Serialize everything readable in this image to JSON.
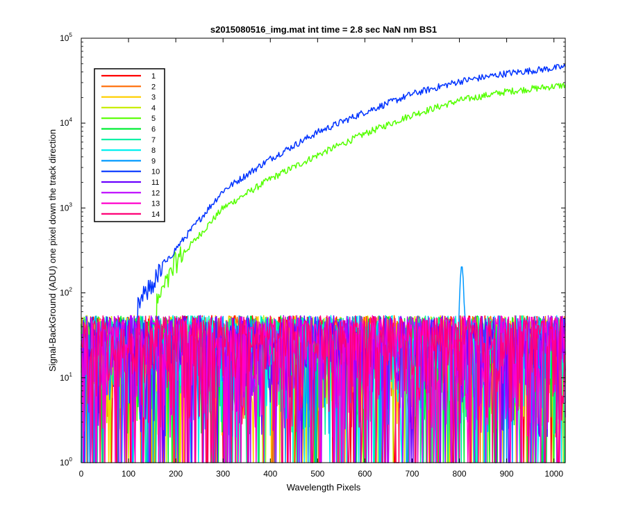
{
  "chart_data": {
    "type": "line",
    "title": "s2015080516_img.mat int time = 2.8 sec  NaN nm BS1",
    "xlabel": "Wavelength Pixels",
    "ylabel": "Signal-BackGround (ADU) one pixel down the track direction",
    "xlim": [
      0,
      1024
    ],
    "ylim": [
      1,
      100000
    ],
    "yscale": "log",
    "xticks": [
      "0",
      "100",
      "200",
      "300",
      "400",
      "500",
      "600",
      "700",
      "800",
      "900",
      "1000"
    ],
    "yticks": [
      {
        "base": "10",
        "exp": "0"
      },
      {
        "base": "10",
        "exp": "1"
      },
      {
        "base": "10",
        "exp": "2"
      },
      {
        "base": "10",
        "exp": "3"
      },
      {
        "base": "10",
        "exp": "4"
      },
      {
        "base": "10",
        "exp": "5"
      }
    ],
    "grid": false,
    "legend_position": "top-left",
    "series": [
      {
        "name": "1",
        "color": "#ff0000",
        "kind": "noise"
      },
      {
        "name": "2",
        "color": "#ff6a00",
        "kind": "noise"
      },
      {
        "name": "3",
        "color": "#ffd000",
        "kind": "noise"
      },
      {
        "name": "4",
        "color": "#c8ee00",
        "kind": "noise"
      },
      {
        "name": "5",
        "color": "#55ff00",
        "kind": "signal",
        "curve": [
          [
            160,
            75
          ],
          [
            200,
            230
          ],
          [
            300,
            1000
          ],
          [
            400,
            2200
          ],
          [
            500,
            4200
          ],
          [
            600,
            7500
          ],
          [
            700,
            12500
          ],
          [
            800,
            18500
          ],
          [
            900,
            23500
          ],
          [
            1024,
            28000
          ]
        ]
      },
      {
        "name": "6",
        "color": "#00ee33",
        "kind": "noise"
      },
      {
        "name": "7",
        "color": "#00f0a0",
        "kind": "noise"
      },
      {
        "name": "8",
        "color": "#00f0f0",
        "kind": "noise"
      },
      {
        "name": "9",
        "color": "#0099ff",
        "kind": "noise",
        "peak": {
          "x": 805,
          "value": 210
        }
      },
      {
        "name": "10",
        "color": "#0033ff",
        "kind": "signal",
        "curve": [
          [
            120,
            70
          ],
          [
            200,
            330
          ],
          [
            300,
            1600
          ],
          [
            400,
            3800
          ],
          [
            500,
            7800
          ],
          [
            600,
            13500
          ],
          [
            700,
            22000
          ],
          [
            800,
            31000
          ],
          [
            900,
            38500
          ],
          [
            1024,
            46000
          ]
        ]
      },
      {
        "name": "11",
        "color": "#6a00ff",
        "kind": "noise"
      },
      {
        "name": "12",
        "color": "#bb00ff",
        "kind": "noise"
      },
      {
        "name": "13",
        "color": "#ff00cc",
        "kind": "noise"
      },
      {
        "name": "14",
        "color": "#ff0077",
        "kind": "noise"
      }
    ]
  }
}
